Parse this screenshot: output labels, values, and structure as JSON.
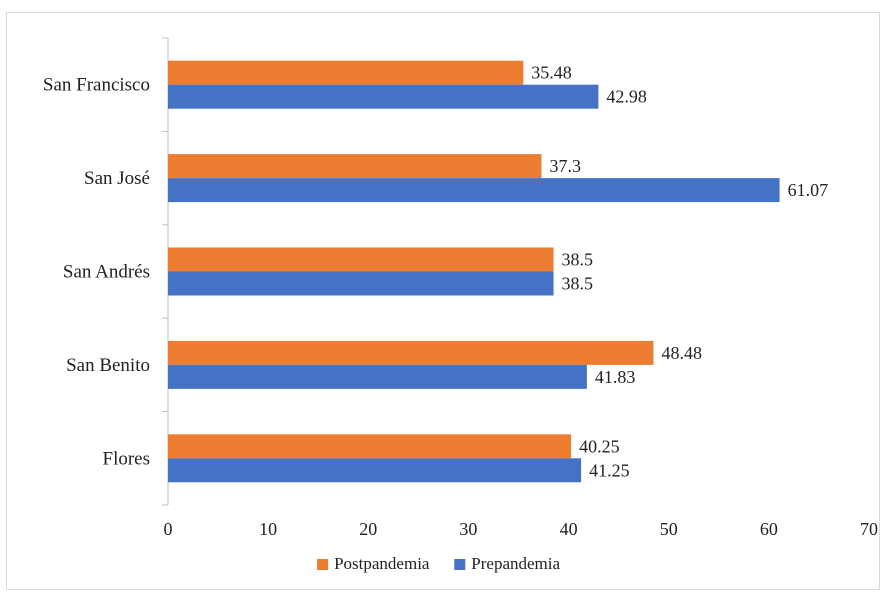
{
  "chart_data": {
    "type": "bar",
    "orientation": "horizontal",
    "title": "",
    "xlabel": "",
    "ylabel": "",
    "categories": [
      "San Francisco",
      "San José",
      "San Andrés",
      "San Benito",
      "Flores"
    ],
    "series": [
      {
        "name": "Postpandemia",
        "color": "#ED7D31",
        "values": [
          35.48,
          37.3,
          38.5,
          48.48,
          40.25
        ],
        "labels": [
          "35.48",
          "37.3",
          "38.5",
          "48.48",
          "40.25"
        ]
      },
      {
        "name": "Prepandemia",
        "color": "#4472C4",
        "values": [
          42.98,
          61.07,
          38.5,
          41.83,
          41.25
        ],
        "labels": [
          "42.98",
          "61.07",
          "38.5",
          "41.83",
          "41.25"
        ]
      }
    ],
    "xlim": [
      0,
      70
    ],
    "xticks": [
      0,
      10,
      20,
      30,
      40,
      50,
      60,
      70
    ],
    "xtick_labels": [
      "0",
      "10",
      "20",
      "30",
      "40",
      "50",
      "60",
      "70"
    ],
    "grid": false,
    "legend_position": "bottom"
  }
}
